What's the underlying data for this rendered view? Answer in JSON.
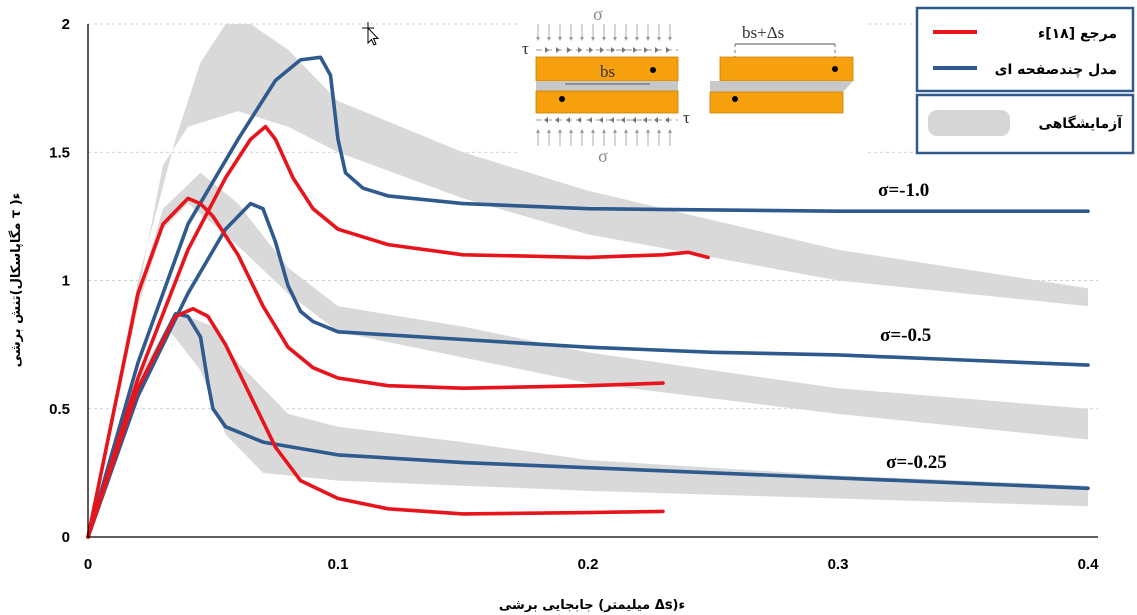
{
  "chart_data": {
    "type": "line",
    "xlabel": "جابجایی برشی (میلیمتر Δs)ء",
    "ylabel": "تنش برشی(مگاپاسکال τ )ء",
    "xlim": [
      0,
      0.4
    ],
    "ylim": [
      0,
      2
    ],
    "x_ticks": [
      "0",
      "0.1",
      "0.2",
      "0.3",
      "0.4"
    ],
    "y_ticks": [
      "0",
      "0.5",
      "1",
      "1.5",
      "2"
    ],
    "grid": "horizontal-dashed",
    "legend_position": "top-right",
    "legend": [
      {
        "label": "مرجع [۱۸]ء",
        "color": "#e8141c",
        "kind": "line"
      },
      {
        "label": "مدل چندصفحه ای",
        "color": "#2f5a8e",
        "kind": "line"
      },
      {
        "label": "آزمایشگاهی",
        "color": "#d6d6d6",
        "kind": "band"
      }
    ],
    "annotations": [
      "σ=-1.0",
      "σ=-0.5",
      "σ=-0.25"
    ],
    "inset": {
      "sigma": "σ",
      "tau": "τ",
      "bs": "bs",
      "bs_delta": "bs+Δs"
    },
    "series": [
      {
        "group": "σ=-1.0",
        "kind": "band",
        "upper": [
          [
            0,
            0
          ],
          [
            0.02,
            1.0
          ],
          [
            0.035,
            1.55
          ],
          [
            0.045,
            1.85
          ],
          [
            0.055,
            2.0
          ],
          [
            0.065,
            2.0
          ],
          [
            0.08,
            1.9
          ],
          [
            0.1,
            1.7
          ],
          [
            0.15,
            1.5
          ],
          [
            0.2,
            1.35
          ],
          [
            0.3,
            1.12
          ],
          [
            0.4,
            0.97
          ]
        ],
        "lower": [
          [
            0,
            0
          ],
          [
            0.02,
            0.95
          ],
          [
            0.03,
            1.45
          ],
          [
            0.04,
            1.6
          ],
          [
            0.06,
            1.66
          ],
          [
            0.08,
            1.6
          ],
          [
            0.1,
            1.5
          ],
          [
            0.15,
            1.32
          ],
          [
            0.2,
            1.18
          ],
          [
            0.3,
            1.0
          ],
          [
            0.4,
            0.9
          ]
        ]
      },
      {
        "group": "σ=-0.5",
        "kind": "band",
        "upper": [
          [
            0,
            0
          ],
          [
            0.02,
            0.95
          ],
          [
            0.03,
            1.28
          ],
          [
            0.045,
            1.42
          ],
          [
            0.06,
            1.3
          ],
          [
            0.08,
            1.05
          ],
          [
            0.1,
            0.9
          ],
          [
            0.15,
            0.82
          ],
          [
            0.2,
            0.72
          ],
          [
            0.3,
            0.58
          ],
          [
            0.4,
            0.5
          ]
        ],
        "lower": [
          [
            0,
            0
          ],
          [
            0.02,
            0.9
          ],
          [
            0.03,
            1.2
          ],
          [
            0.04,
            1.3
          ],
          [
            0.055,
            1.18
          ],
          [
            0.08,
            0.95
          ],
          [
            0.1,
            0.8
          ],
          [
            0.15,
            0.7
          ],
          [
            0.2,
            0.6
          ],
          [
            0.3,
            0.48
          ],
          [
            0.4,
            0.38
          ]
        ]
      },
      {
        "group": "σ=-0.25",
        "kind": "band",
        "upper": [
          [
            0,
            0
          ],
          [
            0.02,
            0.62
          ],
          [
            0.035,
            0.88
          ],
          [
            0.05,
            0.82
          ],
          [
            0.06,
            0.68
          ],
          [
            0.08,
            0.48
          ],
          [
            0.1,
            0.43
          ],
          [
            0.15,
            0.37
          ],
          [
            0.2,
            0.3
          ],
          [
            0.3,
            0.24
          ],
          [
            0.4,
            0.2
          ]
        ],
        "lower": [
          [
            0,
            0
          ],
          [
            0.02,
            0.58
          ],
          [
            0.033,
            0.8
          ],
          [
            0.045,
            0.65
          ],
          [
            0.055,
            0.4
          ],
          [
            0.07,
            0.25
          ],
          [
            0.1,
            0.22
          ],
          [
            0.15,
            0.2
          ],
          [
            0.2,
            0.18
          ],
          [
            0.3,
            0.15
          ],
          [
            0.4,
            0.12
          ]
        ]
      },
      {
        "group": "σ=-1.0",
        "name": "مدل چندصفحه ای",
        "color": "#2f5a8e",
        "points": [
          [
            0,
            0
          ],
          [
            0.02,
            0.68
          ],
          [
            0.04,
            1.22
          ],
          [
            0.06,
            1.55
          ],
          [
            0.075,
            1.78
          ],
          [
            0.085,
            1.86
          ],
          [
            0.093,
            1.87
          ],
          [
            0.097,
            1.8
          ],
          [
            0.1,
            1.55
          ],
          [
            0.103,
            1.42
          ],
          [
            0.11,
            1.36
          ],
          [
            0.12,
            1.33
          ],
          [
            0.15,
            1.3
          ],
          [
            0.2,
            1.28
          ],
          [
            0.3,
            1.27
          ],
          [
            0.4,
            1.27
          ]
        ]
      },
      {
        "group": "σ=-1.0",
        "name": "مرجع [۱۸]ء",
        "color": "#e8141c",
        "points": [
          [
            0,
            0
          ],
          [
            0.02,
            0.62
          ],
          [
            0.04,
            1.12
          ],
          [
            0.055,
            1.4
          ],
          [
            0.065,
            1.55
          ],
          [
            0.071,
            1.6
          ],
          [
            0.075,
            1.55
          ],
          [
            0.082,
            1.4
          ],
          [
            0.09,
            1.28
          ],
          [
            0.1,
            1.2
          ],
          [
            0.12,
            1.14
          ],
          [
            0.15,
            1.1
          ],
          [
            0.2,
            1.09
          ],
          [
            0.23,
            1.1
          ],
          [
            0.24,
            1.11
          ],
          [
            0.248,
            1.09
          ]
        ]
      },
      {
        "group": "σ=-0.5",
        "name": "مدل چندصفحه ای",
        "color": "#2f5a8e",
        "points": [
          [
            0,
            0
          ],
          [
            0.02,
            0.55
          ],
          [
            0.04,
            0.95
          ],
          [
            0.055,
            1.2
          ],
          [
            0.065,
            1.3
          ],
          [
            0.07,
            1.28
          ],
          [
            0.075,
            1.15
          ],
          [
            0.08,
            0.98
          ],
          [
            0.085,
            0.88
          ],
          [
            0.09,
            0.84
          ],
          [
            0.1,
            0.8
          ],
          [
            0.15,
            0.77
          ],
          [
            0.2,
            0.74
          ],
          [
            0.25,
            0.72
          ],
          [
            0.3,
            0.71
          ],
          [
            0.35,
            0.69
          ],
          [
            0.4,
            0.67
          ]
        ]
      },
      {
        "group": "σ=-0.5",
        "name": "مرجع [۱۸]ء",
        "color": "#e8141c",
        "points": [
          [
            0,
            0
          ],
          [
            0.02,
            0.95
          ],
          [
            0.03,
            1.22
          ],
          [
            0.04,
            1.32
          ],
          [
            0.045,
            1.3
          ],
          [
            0.05,
            1.25
          ],
          [
            0.06,
            1.1
          ],
          [
            0.07,
            0.9
          ],
          [
            0.08,
            0.74
          ],
          [
            0.09,
            0.66
          ],
          [
            0.1,
            0.62
          ],
          [
            0.12,
            0.59
          ],
          [
            0.15,
            0.58
          ],
          [
            0.2,
            0.59
          ],
          [
            0.23,
            0.6
          ]
        ]
      },
      {
        "group": "σ=-0.25",
        "name": "مدل چندصفحه ای",
        "color": "#2f5a8e",
        "points": [
          [
            0,
            0
          ],
          [
            0.02,
            0.58
          ],
          [
            0.035,
            0.87
          ],
          [
            0.04,
            0.86
          ],
          [
            0.045,
            0.78
          ],
          [
            0.048,
            0.6
          ],
          [
            0.05,
            0.5
          ],
          [
            0.055,
            0.43
          ],
          [
            0.07,
            0.37
          ],
          [
            0.1,
            0.32
          ],
          [
            0.15,
            0.29
          ],
          [
            0.2,
            0.27
          ],
          [
            0.3,
            0.23
          ],
          [
            0.4,
            0.19
          ]
        ]
      },
      {
        "group": "σ=-0.25",
        "name": "مرجع [۱۸]ء",
        "color": "#e8141c",
        "points": [
          [
            0,
            0
          ],
          [
            0.02,
            0.58
          ],
          [
            0.035,
            0.86
          ],
          [
            0.042,
            0.89
          ],
          [
            0.048,
            0.86
          ],
          [
            0.055,
            0.75
          ],
          [
            0.065,
            0.55
          ],
          [
            0.075,
            0.35
          ],
          [
            0.085,
            0.22
          ],
          [
            0.1,
            0.15
          ],
          [
            0.12,
            0.11
          ],
          [
            0.15,
            0.09
          ],
          [
            0.2,
            0.095
          ],
          [
            0.23,
            0.1
          ]
        ]
      }
    ]
  }
}
